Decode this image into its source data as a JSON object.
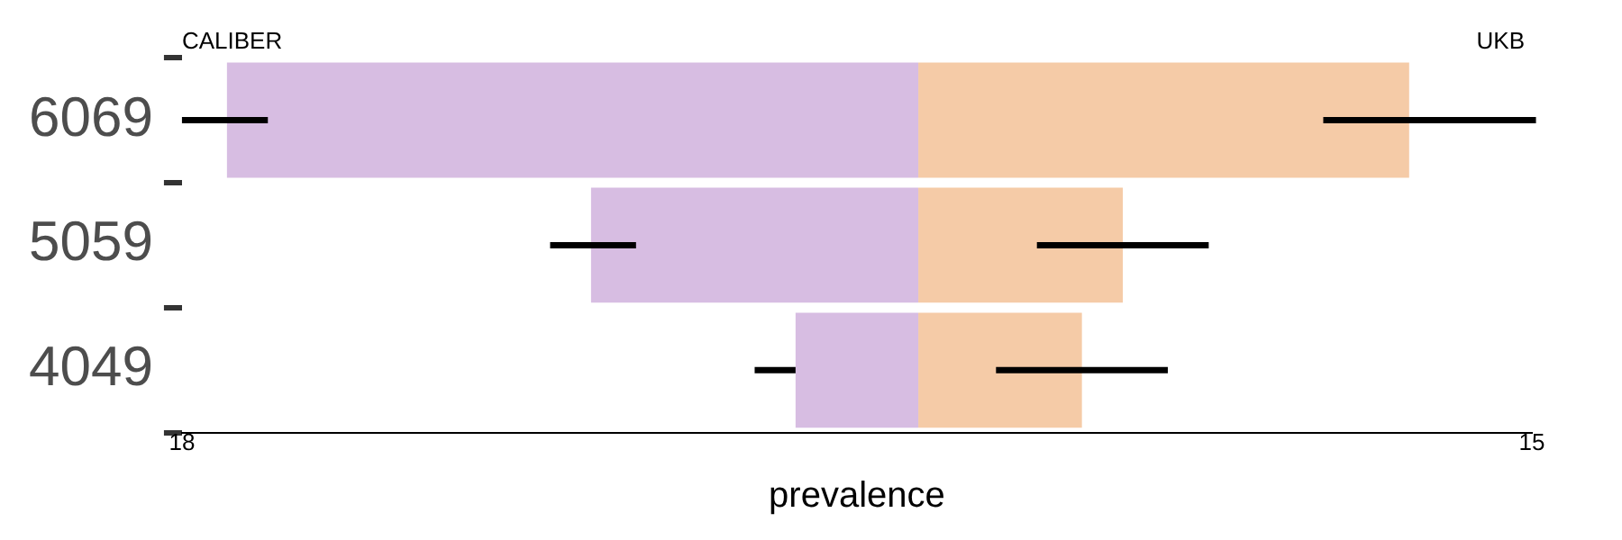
{
  "chart_data": {
    "type": "bar",
    "orientation": "horizontal",
    "stacked": true,
    "xlabel": "prevalence",
    "categories": [
      "6069",
      "5059",
      "4049"
    ],
    "series": [
      {
        "name": "CALIBER",
        "color": "#d7bde2",
        "values": [
          -16.9,
          -8.0,
          -3.0
        ],
        "errors": [
          [
            -18.0,
            -15.9
          ],
          [
            -9.0,
            -6.9
          ],
          [
            -4.0,
            -3.0
          ]
        ]
      },
      {
        "name": "UKB",
        "color": "#f5cba7",
        "values": [
          12.0,
          5.0,
          4.0
        ],
        "errors": [
          [
            9.9,
            15.1
          ],
          [
            2.9,
            7.1
          ],
          [
            1.9,
            6.1
          ]
        ]
      }
    ],
    "xlim": [
      -18,
      15
    ],
    "xticks": [
      {
        "value": -18,
        "label": "18"
      },
      {
        "value": 15,
        "label": "15"
      }
    ],
    "grid": false,
    "legend": false
  }
}
